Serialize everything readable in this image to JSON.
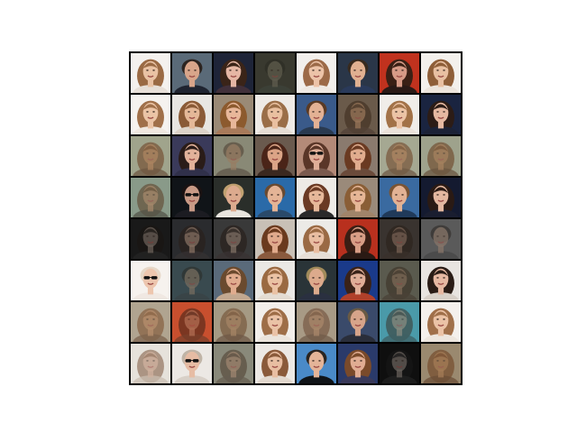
{
  "figure": {
    "rows": 8,
    "cols": 8,
    "tiles": [
      [
        {
          "kind": "face",
          "bg": "#f4f1ee",
          "skin": "#e9c2a4",
          "hair": "#9a6a44",
          "hairStyle": "long",
          "shirt": "#e7dfd8"
        },
        {
          "kind": "face",
          "bg": "#5a6a78",
          "skin": "#d8a58a",
          "hair": "#2c2420",
          "hairStyle": "short",
          "shirt": "#1f2430"
        },
        {
          "kind": "face",
          "bg": "#1e2438",
          "skin": "#e5b6a4",
          "hair": "#3a2418",
          "hairStyle": "long",
          "shirt": "#41303a"
        },
        {
          "kind": "blur",
          "bg": "#3a3a30",
          "skin": "#6e6a5a",
          "hair": "#2a2a22",
          "hairStyle": "short",
          "shirt": "#40473f"
        },
        {
          "kind": "face",
          "bg": "#f2efec",
          "skin": "#ecc3a8",
          "hair": "#9c6a48",
          "hairStyle": "long",
          "shirt": "#efe9e3"
        },
        {
          "kind": "face",
          "bg": "#2a3648",
          "skin": "#e0b091",
          "hair": "#382a1e",
          "hairStyle": "short",
          "shirt": "#2a3a5a"
        },
        {
          "kind": "face",
          "bg": "#c0321e",
          "skin": "#d69a86",
          "hair": "#3a2015",
          "hairStyle": "long",
          "shirt": "#2a1a16"
        },
        {
          "kind": "face",
          "bg": "#f3f0ec",
          "skin": "#e8c0a2",
          "hair": "#8e5e38",
          "hairStyle": "long",
          "shirt": "#ece4dc"
        }
      ],
      [
        {
          "kind": "face",
          "bg": "#f5f2ef",
          "skin": "#ebc4a6",
          "hair": "#a0704a",
          "hairStyle": "long",
          "shirt": "#f0e8e0"
        },
        {
          "kind": "face",
          "bg": "#e8e6e2",
          "skin": "#e4b898",
          "hair": "#8a5a36",
          "hairStyle": "long",
          "shirt": "#ddd3c8"
        },
        {
          "kind": "face",
          "bg": "#9a8a76",
          "skin": "#e8b79a",
          "hair": "#8c5a2e",
          "hairStyle": "long",
          "shirt": "#a87a5a"
        },
        {
          "kind": "face",
          "bg": "#eeeae6",
          "skin": "#e9c0a0",
          "hair": "#9a6e48",
          "hairStyle": "long",
          "shirt": "#e6ddd4"
        },
        {
          "kind": "face",
          "bg": "#3a5a8a",
          "skin": "#e3b194",
          "hair": "#5a3a24",
          "hairStyle": "short",
          "shirt": "#2a3a50"
        },
        {
          "kind": "blur",
          "bg": "#6a5a4a",
          "skin": "#a8805e",
          "hair": "#3a281a",
          "hairStyle": "long",
          "shirt": "#4a3a30"
        },
        {
          "kind": "face",
          "bg": "#f0ede9",
          "skin": "#ecc4a6",
          "hair": "#a27248",
          "hairStyle": "long",
          "shirt": "#ebe2da"
        },
        {
          "kind": "face",
          "bg": "#1a2440",
          "skin": "#e6b9a2",
          "hair": "#2c1c16",
          "hairStyle": "long",
          "shirt": "#1c2236"
        }
      ],
      [
        {
          "kind": "blur",
          "bg": "#a0a48c",
          "skin": "#b27850",
          "hair": "#6a3a1c",
          "hairStyle": "long",
          "shirt": "#5a3a26"
        },
        {
          "kind": "face",
          "bg": "#3a3a5a",
          "skin": "#e2b29a",
          "hair": "#2a1c18",
          "hairStyle": "long",
          "shirt": "#30304a"
        },
        {
          "kind": "blur",
          "bg": "#8a8a76",
          "skin": "#9e7a5e",
          "hair": "#4a3a2e",
          "hairStyle": "short",
          "shirt": "#4e4238"
        },
        {
          "kind": "face",
          "bg": "#6a5a4e",
          "skin": "#dba486",
          "hair": "#4a2418",
          "hairStyle": "long",
          "shirt": "#3a2820"
        },
        {
          "kind": "glasses",
          "bg": "#b48a78",
          "skin": "#dfae98",
          "hair": "#5a3628",
          "hairStyle": "long",
          "shirt": "#7a5a4e"
        },
        {
          "kind": "face",
          "bg": "#8a7a6e",
          "skin": "#e0ac8e",
          "hair": "#6a3a22",
          "hairStyle": "long",
          "shirt": "#6a4a3a"
        },
        {
          "kind": "blur",
          "bg": "#a6a892",
          "skin": "#b07a52",
          "hair": "#6a3c1e",
          "hairStyle": "long",
          "shirt": "#5a3c28"
        },
        {
          "kind": "blur",
          "bg": "#9ea28c",
          "skin": "#aa764e",
          "hair": "#643818",
          "hairStyle": "long",
          "shirt": "#563824"
        }
      ],
      [
        {
          "kind": "blur",
          "bg": "#8a9a8a",
          "skin": "#b08260",
          "hair": "#5a3a22",
          "hairStyle": "long",
          "shirt": "#403a30"
        },
        {
          "kind": "glasses",
          "bg": "#101418",
          "skin": "#c89a86",
          "hair": "#1a1212",
          "hairStyle": "short",
          "shirt": "#1c1c22"
        },
        {
          "kind": "face",
          "bg": "#2a2e2a",
          "skin": "#dcaa8e",
          "hair": "#c0a070",
          "hairStyle": "short",
          "shirt": "#e8e4de"
        },
        {
          "kind": "face",
          "bg": "#2a6aa8",
          "skin": "#e4b496",
          "hair": "#6a4a30",
          "hairStyle": "short",
          "shirt": "#2a4a6a"
        },
        {
          "kind": "face",
          "bg": "#eeebe6",
          "skin": "#e6b89a",
          "hair": "#6a3a24",
          "hairStyle": "long",
          "shirt": "#2a2a2a"
        },
        {
          "kind": "face",
          "bg": "#9a8a7a",
          "skin": "#e6b696",
          "hair": "#8a5e36",
          "hairStyle": "long",
          "shirt": "#a0846a"
        },
        {
          "kind": "face",
          "bg": "#3a6aa0",
          "skin": "#e2b294",
          "hair": "#7a5434",
          "hairStyle": "short",
          "shirt": "#203a5a"
        },
        {
          "kind": "face",
          "bg": "#141a30",
          "skin": "#e4b8a0",
          "hair": "#2a1a14",
          "hairStyle": "long",
          "shirt": "#1a1e30"
        }
      ],
      [
        {
          "kind": "blur",
          "bg": "#1a1a1a",
          "skin": "#8a7a70",
          "hair": "#1a1410",
          "hairStyle": "long",
          "shirt": "#2a2a2a"
        },
        {
          "kind": "blur",
          "bg": "#2a2c2e",
          "skin": "#a88a76",
          "hair": "#2a1e18",
          "hairStyle": "long",
          "shirt": "#3a3434"
        },
        {
          "kind": "blur",
          "bg": "#3a3a3a",
          "skin": "#9a8476",
          "hair": "#241a14",
          "hairStyle": "long",
          "shirt": "#3a3030"
        },
        {
          "kind": "face",
          "bg": "#c8c0b6",
          "skin": "#e0aa8c",
          "hair": "#6a3a1e",
          "hairStyle": "long",
          "shirt": "#8a5a3e"
        },
        {
          "kind": "face",
          "bg": "#eceae6",
          "skin": "#e9bea2",
          "hair": "#9a6a44",
          "hairStyle": "long",
          "shirt": "#e6ded6"
        },
        {
          "kind": "face",
          "bg": "#b8301e",
          "skin": "#d89e86",
          "hair": "#3a1e14",
          "hairStyle": "long",
          "shirt": "#2a1a14"
        },
        {
          "kind": "blur",
          "bg": "#3a3430",
          "skin": "#8e7260",
          "hair": "#2a2018",
          "hairStyle": "long",
          "shirt": "#3a302a"
        },
        {
          "kind": "blur",
          "bg": "#5a5a5a",
          "skin": "#9a8070",
          "hair": "#2a2420",
          "hairStyle": "short",
          "shirt": "#404040"
        }
      ],
      [
        {
          "kind": "glasses",
          "bg": "#f6f2ee",
          "skin": "#edc6ae",
          "hair": "#e6d8c8",
          "hairStyle": "short",
          "shirt": "#f0e8e2"
        },
        {
          "kind": "blur",
          "bg": "#3a4a50",
          "skin": "#8e7a66",
          "hair": "#2a2a24",
          "hairStyle": "short",
          "shirt": "#3a4040"
        },
        {
          "kind": "face",
          "bg": "#5a6a7a",
          "skin": "#e0ac8e",
          "hair": "#6a4a2e",
          "hairStyle": "long",
          "shirt": "#c2a890"
        },
        {
          "kind": "face",
          "bg": "#eae8e4",
          "skin": "#eac2a4",
          "hair": "#9a6a42",
          "hairStyle": "long",
          "shirt": "#e4dcd2"
        },
        {
          "kind": "face",
          "bg": "#2a3438",
          "skin": "#dcaa8c",
          "hair": "#a08a5a",
          "hairStyle": "short",
          "shirt": "#2a3040"
        },
        {
          "kind": "face",
          "bg": "#1a3a8a",
          "skin": "#e0ae98",
          "hair": "#3a2218",
          "hairStyle": "long",
          "shirt": "#b0402a"
        },
        {
          "kind": "blur",
          "bg": "#5a5a4e",
          "skin": "#8a6e58",
          "hair": "#3a2e22",
          "hairStyle": "long",
          "shirt": "#44382e"
        },
        {
          "kind": "face",
          "bg": "#e8e4e0",
          "skin": "#e6b8a2",
          "hair": "#2a1c16",
          "hairStyle": "long",
          "shirt": "#d8d0c8"
        }
      ],
      [
        {
          "kind": "blur",
          "bg": "#b0a490",
          "skin": "#b88660",
          "hair": "#7a4a28",
          "hairStyle": "long",
          "shirt": "#6a4a34"
        },
        {
          "kind": "blur",
          "bg": "#c8502e",
          "skin": "#a87a60",
          "hair": "#3a2218",
          "hairStyle": "long",
          "shirt": "#5a3a2a"
        },
        {
          "kind": "blur",
          "bg": "#a69a84",
          "skin": "#a67c5a",
          "hair": "#6a4428",
          "hairStyle": "long",
          "shirt": "#5a4030"
        },
        {
          "kind": "face",
          "bg": "#f2eeea",
          "skin": "#eac2a6",
          "hair": "#9e6e48",
          "hairStyle": "long",
          "shirt": "#ebe4dc"
        },
        {
          "kind": "blur",
          "bg": "#a89a86",
          "skin": "#aa8060",
          "hair": "#6a4630",
          "hairStyle": "long",
          "shirt": "#5c4434"
        },
        {
          "kind": "face",
          "bg": "#3a4a6a",
          "skin": "#d6a48a",
          "hair": "#6a5a44",
          "hairStyle": "short",
          "shirt": "#2a2e3a"
        },
        {
          "kind": "blur",
          "bg": "#4a9aaa",
          "skin": "#9e8470",
          "hair": "#3a3028",
          "hairStyle": "long",
          "shirt": "#3a4a4a"
        },
        {
          "kind": "face",
          "bg": "#f4f0ec",
          "skin": "#ebc3a6",
          "hair": "#a0704a",
          "hairStyle": "long",
          "shirt": "#ede6de"
        }
      ],
      [
        {
          "kind": "blur",
          "bg": "#e6e2dc",
          "skin": "#c8a088",
          "hair": "#7a5238",
          "hairStyle": "long",
          "shirt": "#c0b0a2"
        },
        {
          "kind": "glasses",
          "bg": "#ece8e4",
          "skin": "#e6bca4",
          "hair": "#c0b4a6",
          "hairStyle": "short",
          "shirt": "#d8d0c8"
        },
        {
          "kind": "blur",
          "bg": "#8a8a7a",
          "skin": "#a8866c",
          "hair": "#4a3a2c",
          "hairStyle": "long",
          "shirt": "#5a4e42"
        },
        {
          "kind": "face",
          "bg": "#ece8e4",
          "skin": "#e8bea2",
          "hair": "#8a5a3a",
          "hairStyle": "long",
          "shirt": "#e2d8ce"
        },
        {
          "kind": "face",
          "bg": "#4a8ac8",
          "skin": "#e4b498",
          "hair": "#2a2420",
          "hairStyle": "short",
          "shirt": "#101418"
        },
        {
          "kind": "face",
          "bg": "#2a3a6a",
          "skin": "#e0ac92",
          "hair": "#7a4a2a",
          "hairStyle": "long",
          "shirt": "#3a3a5a"
        },
        {
          "kind": "blur",
          "bg": "#101010",
          "skin": "#8a8078",
          "hair": "#1a1a1a",
          "hairStyle": "long",
          "shirt": "#2a2a2a"
        },
        {
          "kind": "blur",
          "bg": "#9a8a70",
          "skin": "#a8784e",
          "hair": "#6a3a1a",
          "hairStyle": "long",
          "shirt": "#5a3822"
        }
      ]
    ]
  }
}
